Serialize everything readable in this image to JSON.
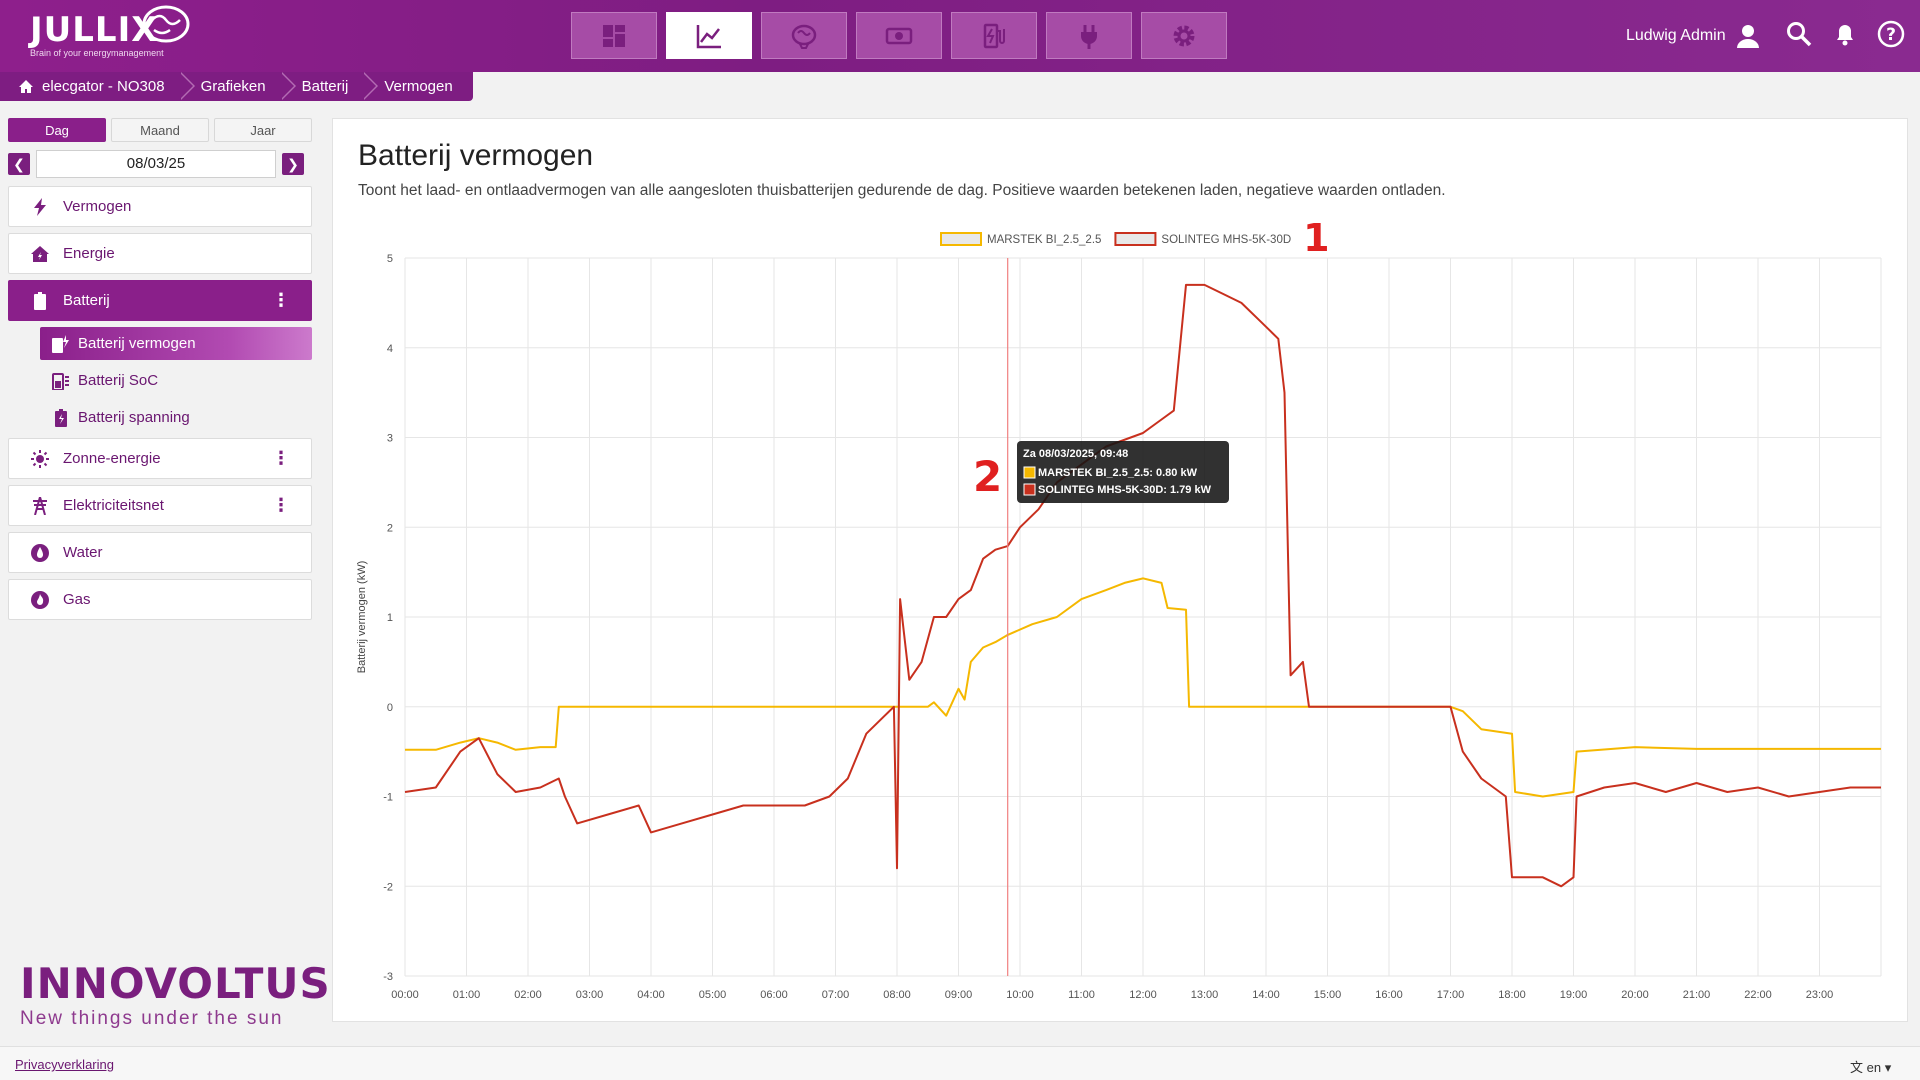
{
  "app": {
    "logo": "JULLIX",
    "tagline": "Brain of your energymanagement",
    "user": "Ludwig Admin"
  },
  "nav": [
    {
      "name": "dashboard-icon"
    },
    {
      "name": "chart-line-icon",
      "active": true
    },
    {
      "name": "brain-icon"
    },
    {
      "name": "money-icon"
    },
    {
      "name": "charger-icon"
    },
    {
      "name": "plug-icon"
    },
    {
      "name": "gear-icon"
    }
  ],
  "breadcrumb": [
    "elecgator - NO308",
    "Grafieken",
    "Batterij",
    "Vermogen"
  ],
  "period": {
    "day": "Dag",
    "month": "Maand",
    "year": "Jaar",
    "selected": "Dag"
  },
  "date": "08/03/25",
  "menu": {
    "vermogen": "Vermogen",
    "energie": "Energie",
    "batterij": "Batterij",
    "sub": [
      "Batterij vermogen",
      "Batterij SoC",
      "Batterij spanning"
    ],
    "zonne": "Zonne-energie",
    "net": "Elektriciteitsnet",
    "water": "Water",
    "gas": "Gas"
  },
  "brand": {
    "name": "INNOVOLTUS",
    "tagline": "New things under the sun"
  },
  "page": {
    "title": "Batterij vermogen",
    "description": "Toont het laad- en ontlaadvermogen van alle aangesloten thuisbatterijen gedurende de dag. Positieve waarden betekenen laden, negatieve waarden ontladen."
  },
  "footer": {
    "privacy": "Privacyverklaring",
    "lang": "en"
  },
  "annotations": [
    "1",
    "2"
  ],
  "chart_data": {
    "type": "line",
    "xlabel": "",
    "ylabel": "Batterij vermogen (kW)",
    "ylim": [
      -3,
      5
    ],
    "yticks": [
      -3,
      -2,
      -1,
      0,
      1,
      2,
      3,
      4,
      5
    ],
    "xticks": [
      "00:00",
      "01:00",
      "02:00",
      "03:00",
      "04:00",
      "05:00",
      "06:00",
      "07:00",
      "08:00",
      "09:00",
      "10:00",
      "11:00",
      "12:00",
      "13:00",
      "14:00",
      "15:00",
      "16:00",
      "17:00",
      "18:00",
      "19:00",
      "20:00",
      "21:00",
      "22:00",
      "23:00"
    ],
    "legend_position": "top",
    "grid": true,
    "series": [
      {
        "name": "MARSTEK BI_2.5_2.5",
        "color": "#f5b800",
        "points": [
          [
            0,
            -0.48
          ],
          [
            0.5,
            -0.48
          ],
          [
            0.9,
            -0.4
          ],
          [
            1.2,
            -0.35
          ],
          [
            1.5,
            -0.4
          ],
          [
            1.8,
            -0.48
          ],
          [
            2.2,
            -0.45
          ],
          [
            2.45,
            -0.45
          ],
          [
            2.5,
            0
          ],
          [
            8.0,
            0
          ],
          [
            8.5,
            0
          ],
          [
            8.6,
            0.05
          ],
          [
            8.8,
            -0.1
          ],
          [
            9.0,
            0.2
          ],
          [
            9.1,
            0.08
          ],
          [
            9.2,
            0.5
          ],
          [
            9.4,
            0.66
          ],
          [
            9.6,
            0.72
          ],
          [
            9.8,
            0.8
          ],
          [
            10.2,
            0.92
          ],
          [
            10.6,
            1.0
          ],
          [
            11.0,
            1.2
          ],
          [
            11.4,
            1.3
          ],
          [
            11.7,
            1.38
          ],
          [
            12.0,
            1.43
          ],
          [
            12.3,
            1.38
          ],
          [
            12.4,
            1.1
          ],
          [
            12.7,
            1.08
          ],
          [
            12.75,
            0
          ],
          [
            17.0,
            0
          ],
          [
            17.2,
            -0.05
          ],
          [
            17.5,
            -0.25
          ],
          [
            18.0,
            -0.3
          ],
          [
            18.05,
            -0.95
          ],
          [
            18.5,
            -1.0
          ],
          [
            19.0,
            -0.95
          ],
          [
            19.05,
            -0.5
          ],
          [
            20.0,
            -0.45
          ],
          [
            21.0,
            -0.47
          ],
          [
            22.0,
            -0.47
          ],
          [
            23.0,
            -0.47
          ],
          [
            24.0,
            -0.47
          ]
        ]
      },
      {
        "name": "SOLINTEG MHS-5K-30D",
        "color": "#c8301e",
        "points": [
          [
            0,
            -0.95
          ],
          [
            0.5,
            -0.9
          ],
          [
            0.9,
            -0.5
          ],
          [
            1.2,
            -0.35
          ],
          [
            1.5,
            -0.75
          ],
          [
            1.8,
            -0.95
          ],
          [
            2.2,
            -0.9
          ],
          [
            2.5,
            -0.8
          ],
          [
            2.6,
            -1.0
          ],
          [
            2.8,
            -1.3
          ],
          [
            3.3,
            -1.2
          ],
          [
            3.8,
            -1.1
          ],
          [
            4.0,
            -1.4
          ],
          [
            4.5,
            -1.3
          ],
          [
            5.0,
            -1.2
          ],
          [
            5.5,
            -1.1
          ],
          [
            6.0,
            -1.1
          ],
          [
            6.5,
            -1.1
          ],
          [
            6.9,
            -1.0
          ],
          [
            7.2,
            -0.8
          ],
          [
            7.5,
            -0.3
          ],
          [
            7.8,
            -0.1
          ],
          [
            7.95,
            0
          ],
          [
            8.0,
            -1.8
          ],
          [
            8.05,
            1.2
          ],
          [
            8.2,
            0.3
          ],
          [
            8.4,
            0.5
          ],
          [
            8.6,
            1.0
          ],
          [
            8.8,
            1.0
          ],
          [
            9.0,
            1.2
          ],
          [
            9.2,
            1.3
          ],
          [
            9.4,
            1.65
          ],
          [
            9.6,
            1.75
          ],
          [
            9.8,
            1.79
          ],
          [
            10.0,
            2.0
          ],
          [
            10.3,
            2.2
          ],
          [
            10.6,
            2.5
          ],
          [
            11.0,
            2.7
          ],
          [
            11.4,
            2.9
          ],
          [
            11.8,
            3.0
          ],
          [
            12.0,
            3.05
          ],
          [
            12.3,
            3.2
          ],
          [
            12.5,
            3.3
          ],
          [
            12.7,
            4.7
          ],
          [
            13.0,
            4.7
          ],
          [
            13.3,
            4.6
          ],
          [
            13.6,
            4.5
          ],
          [
            13.9,
            4.3
          ],
          [
            14.2,
            4.1
          ],
          [
            14.3,
            3.5
          ],
          [
            14.4,
            0.35
          ],
          [
            14.6,
            0.5
          ],
          [
            14.7,
            0
          ],
          [
            17.0,
            0
          ],
          [
            17.2,
            -0.5
          ],
          [
            17.5,
            -0.8
          ],
          [
            17.9,
            -1.0
          ],
          [
            18.0,
            -1.9
          ],
          [
            18.5,
            -1.9
          ],
          [
            18.8,
            -2.0
          ],
          [
            19.0,
            -1.9
          ],
          [
            19.05,
            -1.0
          ],
          [
            19.5,
            -0.9
          ],
          [
            20.0,
            -0.85
          ],
          [
            20.5,
            -0.95
          ],
          [
            21.0,
            -0.85
          ],
          [
            21.5,
            -0.95
          ],
          [
            22.0,
            -0.9
          ],
          [
            22.5,
            -1.0
          ],
          [
            23.0,
            -0.95
          ],
          [
            23.5,
            -0.9
          ],
          [
            24.0,
            -0.9
          ]
        ]
      }
    ],
    "crosshair_x": 9.8,
    "tooltip": {
      "title": "Za 08/03/2025, 09:48",
      "rows": [
        "MARSTEK BI_2.5_2.5: 0.80 kW",
        "SOLINTEG MHS-5K-30D: 1.79 kW"
      ]
    }
  }
}
